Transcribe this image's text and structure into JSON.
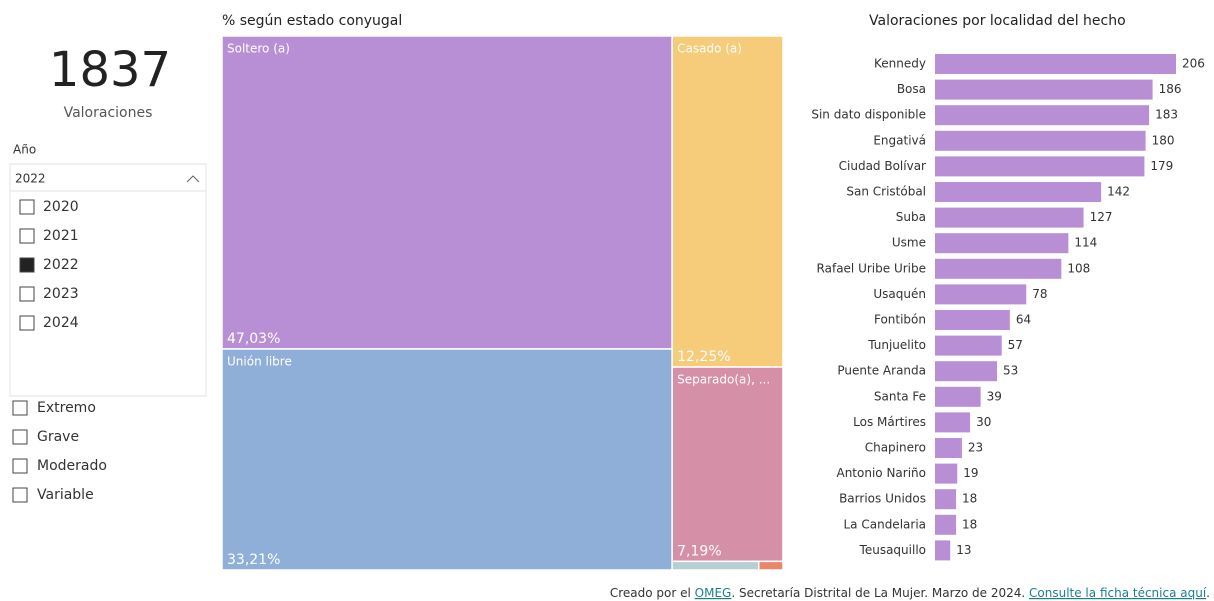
{
  "kpi": {
    "value": 1837,
    "label": "Valoraciones"
  },
  "year_slicer": {
    "title": "Año",
    "selected": "2022",
    "items": [
      "2020",
      "2021",
      "2022",
      "2023",
      "2024"
    ]
  },
  "severity_slicer": {
    "items": [
      "Extremo",
      "Grave",
      "Moderado",
      "Variable"
    ]
  },
  "footer": {
    "parts": [
      "Creado por el ",
      "OMEG",
      ". Secretaría Distrital de La Mujer. Marzo de 2024. ",
      "Consulte la ficha técnica aquí",
      "."
    ]
  },
  "chart_data": [
    {
      "type": "treemap",
      "title": "% según estado conyugal",
      "categories": [
        "Soltero (a)",
        "Unión libre",
        "Casado (a)",
        "Separado(a), ...",
        null,
        null
      ],
      "values": [
        47.03,
        33.21,
        12.25,
        7.19,
        0.25,
        0.07
      ],
      "value_labels": [
        "47,03%",
        "33,21%",
        "12,25%",
        "7,19%",
        null,
        null
      ],
      "colors": [
        "#b88fd4",
        "#8fafd8",
        "#f6cb7a",
        "#d58fa6",
        "#b5cfd3",
        "#e8876b"
      ]
    },
    {
      "type": "bar",
      "orientation": "horizontal",
      "title": "Valoraciones por localidad del hecho",
      "categories": [
        "Kennedy",
        "Bosa",
        "Sin dato disponible",
        "Engativá",
        "Ciudad Bolívar",
        "San Cristóbal",
        "Suba",
        "Usme",
        "Rafael Uribe Uribe",
        "Usaquén",
        "Fontibón",
        "Tunjuelito",
        "Puente Aranda",
        "Santa Fe",
        "Los Mártires",
        "Chapinero",
        "Antonio Nariño",
        "Barrios Unidos",
        "La Candelaria",
        "Teusaquillo"
      ],
      "values": [
        206,
        186,
        183,
        180,
        179,
        142,
        127,
        114,
        108,
        78,
        64,
        57,
        53,
        39,
        30,
        23,
        19,
        18,
        18,
        13
      ],
      "color": "#b88fd4"
    }
  ]
}
